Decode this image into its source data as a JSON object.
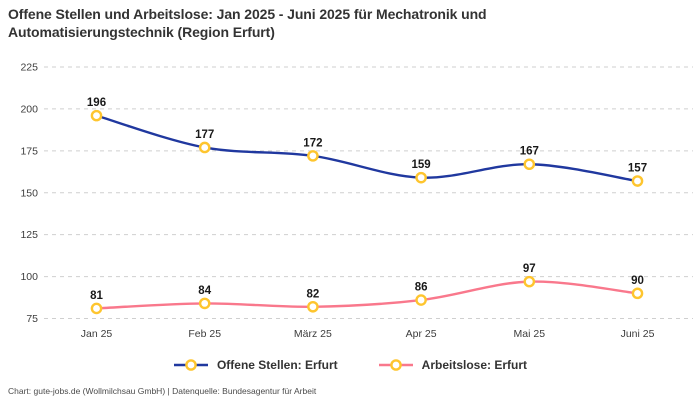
{
  "title": "Offene Stellen und Arbeitslose: Jan 2025 - Juni 2025 für Mechatronik und Automatisierungstechnik (Region Erfurt)",
  "footer": "Chart: gute-jobs.de (Wollmilchsau GmbH) | Datenquelle: Bundesagentur für Arbeit",
  "colors": {
    "blue": "#20389f",
    "pink": "#f9788c",
    "marker_ring": "#fec52e",
    "marker_fill": "#ffffff",
    "grid": "#cfcfcf",
    "axis_text": "#3d3d3d",
    "data_label": "#191919",
    "title_text": "#333333",
    "footer_text": "#4b4b4b"
  },
  "chart_data": {
    "type": "line",
    "title": "Offene Stellen und Arbeitslose: Jan 2025 - Juni 2025 für Mechatronik und Automatisierungstechnik (Region Erfurt)",
    "categories": [
      "Jan 25",
      "Feb 25",
      "März 25",
      "Apr 25",
      "Mai 25",
      "Juni 25"
    ],
    "series": [
      {
        "name": "Offene Stellen: Erfurt",
        "color_key": "blue",
        "values": [
          196,
          177,
          172,
          159,
          167,
          157
        ]
      },
      {
        "name": "Arbeitslose: Erfurt",
        "color_key": "pink",
        "values": [
          81,
          84,
          82,
          86,
          97,
          90
        ]
      }
    ],
    "yticks": [
      75,
      100,
      125,
      150,
      175,
      200,
      225
    ],
    "ylim": [
      75,
      225
    ],
    "xlabel": "",
    "ylabel": "",
    "grid": "horizontal-dashed",
    "legend_position": "bottom",
    "marker": "open-circle-yellow",
    "line_style": "smooth",
    "data_labels": "above-points"
  }
}
